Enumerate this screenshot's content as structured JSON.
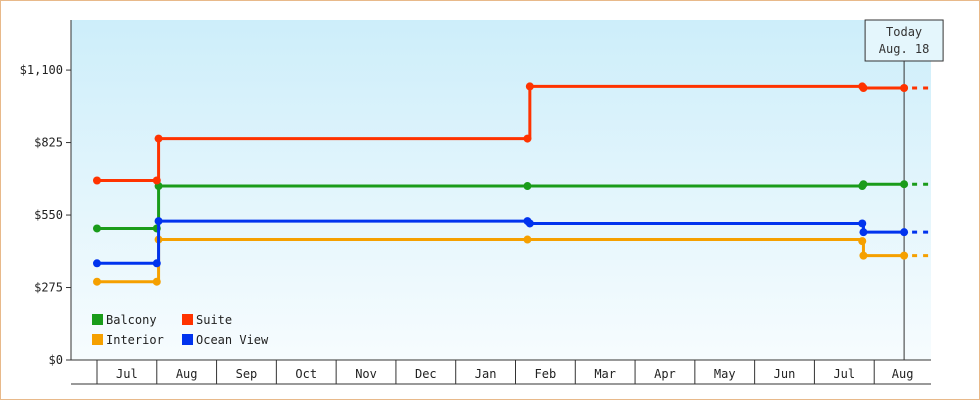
{
  "chart_data": {
    "type": "line",
    "step": true,
    "y_tick_labels": [
      "$0",
      "$275",
      "$550",
      "$825",
      "$1,100"
    ],
    "y_tick_values": [
      0,
      275,
      550,
      825,
      1100
    ],
    "ylim": [
      0,
      1290
    ],
    "x_tick_labels": [
      "Jul",
      "Aug",
      "Sep",
      "Oct",
      "Nov",
      "Dec",
      "Jan",
      "Feb",
      "Mar",
      "Apr",
      "May",
      "Jun",
      "Jul",
      "Aug"
    ],
    "xlim": [
      0,
      13.95
    ],
    "today": {
      "line1": "Today",
      "line2": "Aug. 18",
      "x": 13.5
    },
    "grid": false,
    "legend_placement": "bottom-left",
    "series": [
      {
        "name": "Balcony",
        "color": "#1a9c1a",
        "points": [
          [
            0.0,
            499
          ],
          [
            1.0,
            499
          ],
          [
            1.03,
            660
          ],
          [
            7.2,
            660
          ],
          [
            12.8,
            660
          ],
          [
            12.82,
            667
          ],
          [
            13.5,
            667
          ]
        ]
      },
      {
        "name": "Suite",
        "color": "#ff3300",
        "points": [
          [
            0.0,
            681
          ],
          [
            1.0,
            681
          ],
          [
            1.03,
            840
          ],
          [
            7.2,
            840
          ],
          [
            7.24,
            1038
          ],
          [
            12.8,
            1038
          ],
          [
            12.82,
            1032
          ],
          [
            13.5,
            1032
          ]
        ]
      },
      {
        "name": "Interior",
        "color": "#f5a000",
        "points": [
          [
            0.0,
            297
          ],
          [
            1.0,
            297
          ],
          [
            1.03,
            457
          ],
          [
            7.2,
            457
          ],
          [
            12.8,
            451
          ],
          [
            12.82,
            396
          ],
          [
            13.5,
            396
          ]
        ]
      },
      {
        "name": "Ocean View",
        "color": "#0033ee",
        "points": [
          [
            0.0,
            367
          ],
          [
            1.0,
            367
          ],
          [
            1.03,
            527
          ],
          [
            7.2,
            527
          ],
          [
            7.24,
            518
          ],
          [
            12.8,
            518
          ],
          [
            12.82,
            485
          ],
          [
            13.5,
            485
          ]
        ]
      }
    ]
  }
}
